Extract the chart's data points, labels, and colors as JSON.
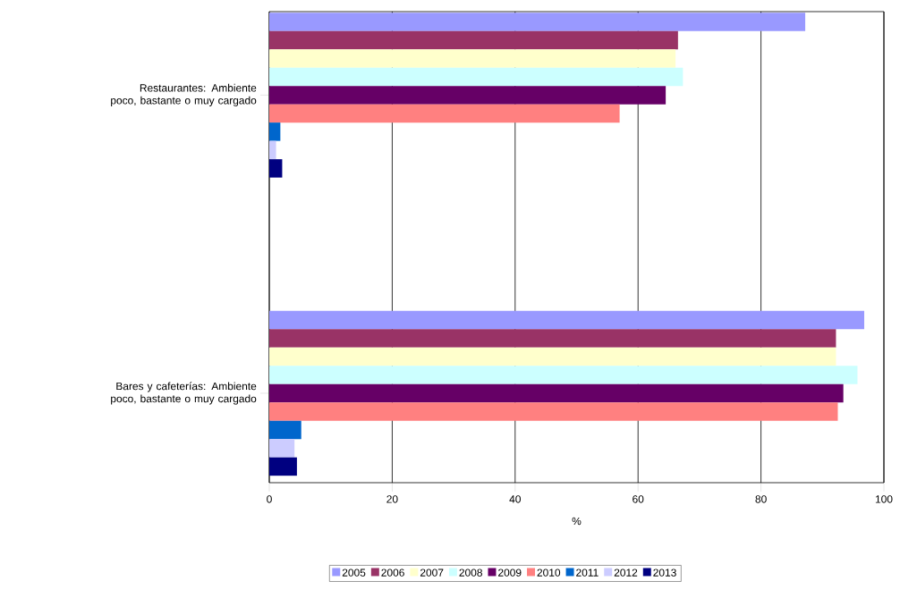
{
  "chart_data": {
    "type": "bar",
    "orientation": "horizontal",
    "xlabel": "%",
    "categories": [
      "Restaurantes: Ambiente poco, bastante o muy cargado",
      "Bares y cafeterías: Ambiente poco, bastante o muy cargado"
    ],
    "series": [
      {
        "name": "2005",
        "color": "#9999ff",
        "values": [
          87.2,
          96.8
        ]
      },
      {
        "name": "2006",
        "color": "#993366",
        "values": [
          66.5,
          92.2
        ]
      },
      {
        "name": "2007",
        "color": "#ffffcc",
        "values": [
          66.1,
          92.2
        ]
      },
      {
        "name": "2008",
        "color": "#ccffff",
        "values": [
          67.3,
          95.7
        ]
      },
      {
        "name": "2009",
        "color": "#660066",
        "values": [
          64.5,
          93.4
        ]
      },
      {
        "name": "2010",
        "color": "#ff8080",
        "values": [
          57.0,
          92.5
        ]
      },
      {
        "name": "2011",
        "color": "#0066cc",
        "values": [
          1.8,
          5.2
        ]
      },
      {
        "name": "2012",
        "color": "#ccccff",
        "values": [
          1.1,
          4.1
        ]
      },
      {
        "name": "2013",
        "color": "#000080",
        "values": [
          2.1,
          4.5
        ]
      }
    ],
    "xlim": [
      0,
      100
    ],
    "xticks": [
      0,
      20,
      40,
      60,
      80,
      100
    ],
    "grid": "x",
    "legend": "bottom"
  }
}
